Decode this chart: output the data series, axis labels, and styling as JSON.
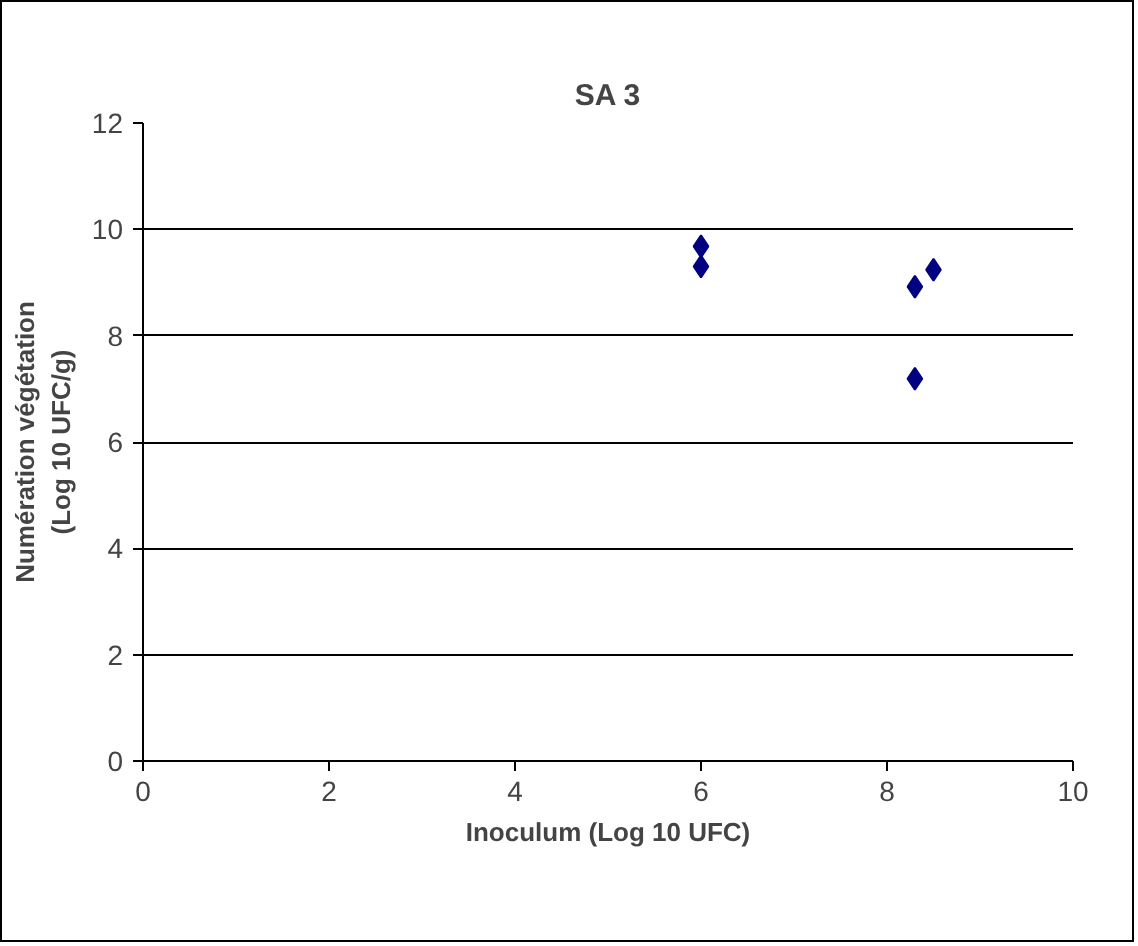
{
  "chart_data": {
    "type": "scatter",
    "title": "SA 3",
    "xlabel": "Inoculum (Log 10 UFC)",
    "ylabel": "Numération végétation\n(Log 10 UFC/g)",
    "series": [
      {
        "color": "#000080",
        "x": [
          6,
          6,
          8.3,
          8.3,
          8.5
        ],
        "values": [
          9.68,
          9.3,
          8.92,
          7.19,
          9.24
        ]
      }
    ],
    "xlim": [
      0,
      10
    ],
    "xticks": [
      0,
      2,
      4,
      6,
      8,
      10
    ],
    "ylim": [
      0,
      12
    ],
    "yticks": [
      0,
      2,
      4,
      6,
      8,
      10,
      12
    ],
    "grid": "y",
    "marker": "diamond"
  }
}
